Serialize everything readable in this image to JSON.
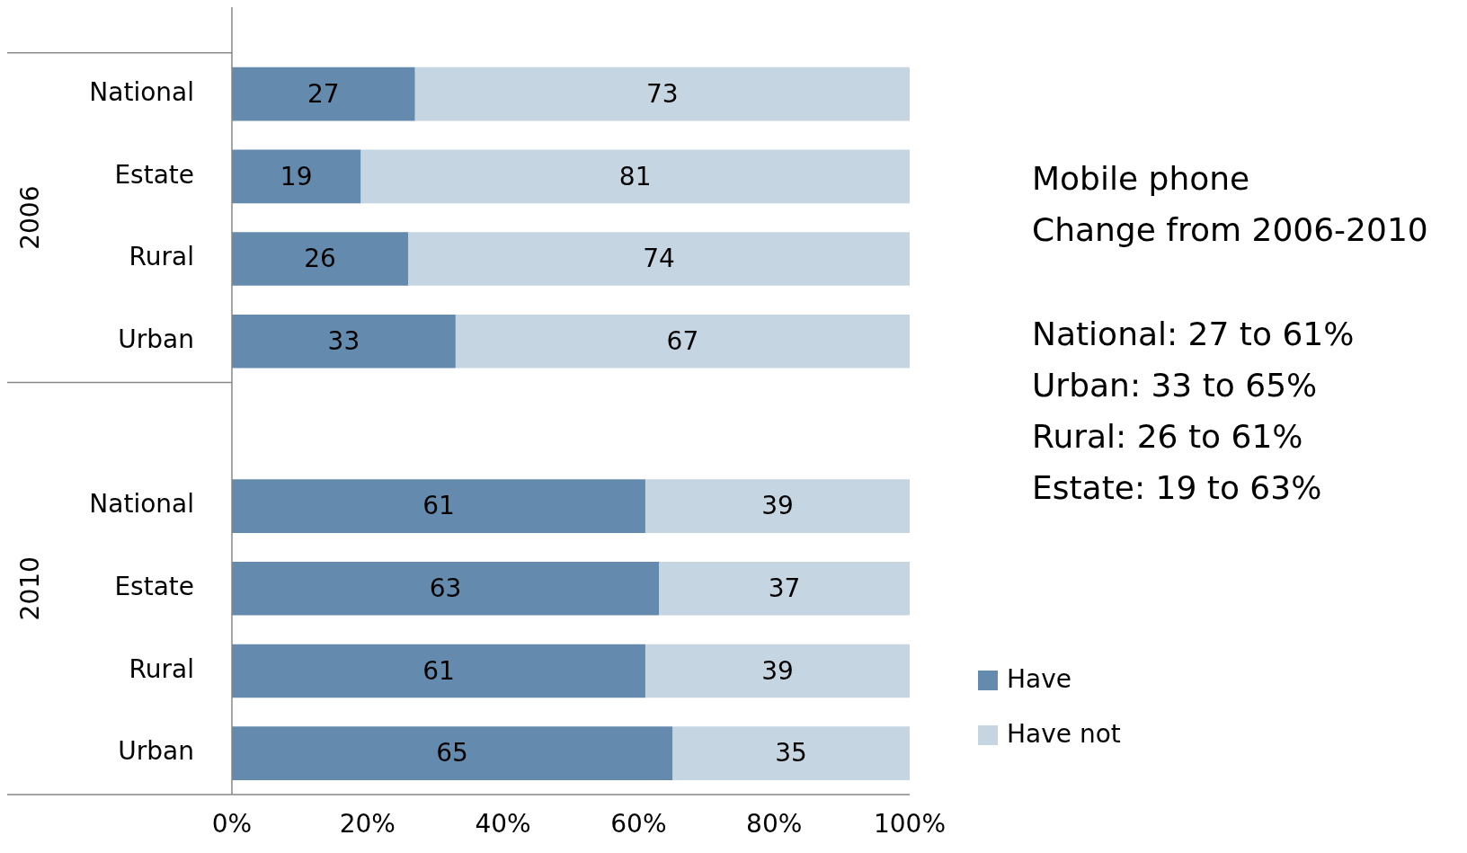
{
  "chart_data": {
    "type": "bar",
    "orientation": "horizontal",
    "stacked": true,
    "title": "Mobile phone",
    "subtitle": "Change from 2006-2010",
    "categories": [
      "National",
      "Estate",
      "Rural",
      "Urban",
      null,
      "National",
      "Estate",
      "Rural",
      "Urban"
    ],
    "series": [
      {
        "name": "Have",
        "color": "#648aae",
        "values": [
          27,
          19,
          26,
          33,
          null,
          61,
          63,
          61,
          65
        ]
      },
      {
        "name": "Have not",
        "color": "#c5d5e2",
        "values": [
          73,
          81,
          74,
          67,
          null,
          39,
          37,
          39,
          35
        ]
      }
    ],
    "xlim": [
      0,
      100
    ],
    "xticks": [
      {
        "value": 0,
        "label": "0%"
      },
      {
        "value": 20,
        "label": "20%"
      },
      {
        "value": 40,
        "label": "40%"
      },
      {
        "value": 60,
        "label": "60%"
      },
      {
        "value": 80,
        "label": "80%"
      },
      {
        "value": 100,
        "label": "100%"
      }
    ],
    "data_labels": true,
    "grid": false,
    "legend": "bottom right",
    "annotations": [
      "2006",
      "2010",
      "National: 27 to 61%",
      "Urban: 33 to 65%",
      "Rural: 26 to 61%",
      "Estate: 19 to 63%"
    ]
  }
}
